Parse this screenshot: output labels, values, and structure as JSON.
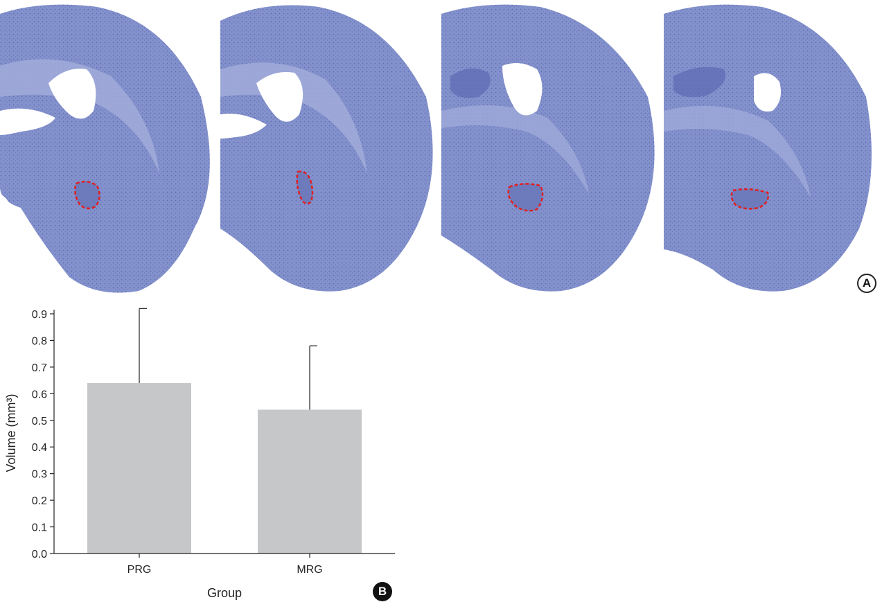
{
  "panel_labels": {
    "a": "A",
    "b": "B"
  },
  "colors": {
    "tissue": "#7a88c6",
    "tissue_light": "#a4aedb",
    "ventricle": "#ffffff",
    "roi": "#e02020",
    "bar": "#c6c7c9",
    "axis": "#222222"
  },
  "chart_data": {
    "type": "bar",
    "categories": [
      "PRG",
      "MRG"
    ],
    "values": [
      0.64,
      0.54
    ],
    "error_upper": [
      0.92,
      0.78
    ],
    "title": "",
    "xlabel": "Group",
    "ylabel": "Volume (mm³)",
    "ylim": [
      0.0,
      0.9
    ],
    "yticks": [
      "0.0",
      "0.1",
      "0.2",
      "0.3",
      "0.4",
      "0.5",
      "0.6",
      "0.7",
      "0.8",
      "0.9"
    ],
    "grid": false
  }
}
